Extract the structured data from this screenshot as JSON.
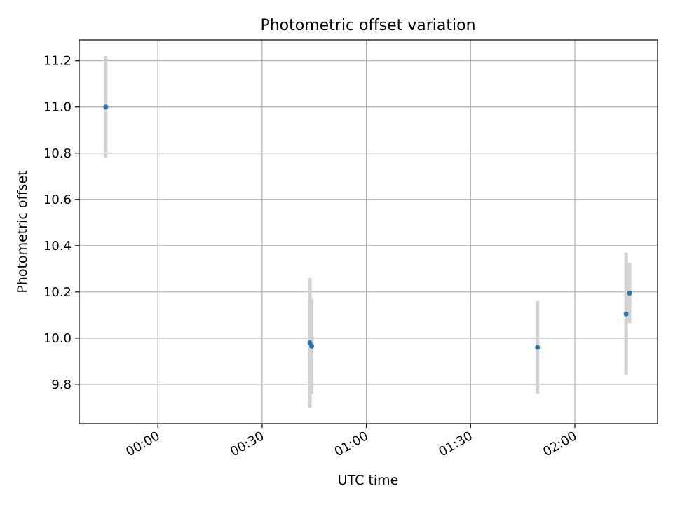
{
  "chart_data": {
    "type": "scatter",
    "title": "Photometric offset variation",
    "xlabel": "UTC time",
    "ylabel": "Photometric offset",
    "x_axis": "time",
    "xlim": [
      "23:37:22",
      "02:23:48"
    ],
    "ylim": [
      9.63,
      11.29
    ],
    "x_ticks": [
      "00:00",
      "00:30",
      "01:00",
      "01:30",
      "02:00"
    ],
    "y_ticks": [
      "9.8",
      "10.0",
      "10.2",
      "10.4",
      "10.6",
      "10.8",
      "11.0",
      "11.2"
    ],
    "grid": true,
    "points": [
      {
        "x": "23:45:00",
        "y": 11.0,
        "err": 0.22
      },
      {
        "x": "00:43:45",
        "y": 9.98,
        "err": 0.28
      },
      {
        "x": "00:44:15",
        "y": 9.965,
        "err": 0.205
      },
      {
        "x": "01:49:15",
        "y": 9.96,
        "err": 0.2
      },
      {
        "x": "02:14:45",
        "y": 10.105,
        "err": 0.265
      },
      {
        "x": "02:15:45",
        "y": 10.195,
        "err": 0.13
      }
    ],
    "marker_color": "#1f77b4",
    "errorbar_color": "#d3d3d3"
  }
}
